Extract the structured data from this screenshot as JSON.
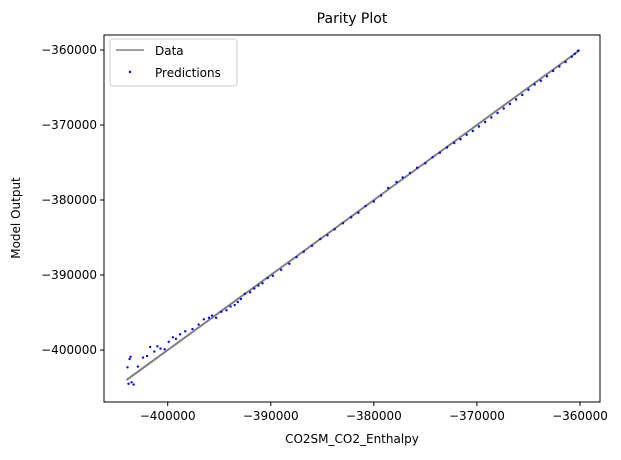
{
  "chart_data": {
    "type": "scatter",
    "title": "Parity Plot",
    "xlabel": "CO2SM_CO2_Enthalpy",
    "ylabel": "Model Output",
    "xlim": [
      -406180,
      -358060
    ],
    "ylim": [
      -406930,
      -358000
    ],
    "xticks": [
      -400000,
      -390000,
      -380000,
      -370000,
      -360000
    ],
    "yticks": [
      -400000,
      -390000,
      -380000,
      -370000,
      -360000
    ],
    "xtick_labels": [
      "−400000",
      "−390000",
      "−380000",
      "−370000",
      "−360000"
    ],
    "ytick_labels": [
      "−400000",
      "−390000",
      "−380000",
      "−370000",
      "−360000"
    ],
    "grid": false,
    "legend_placement": "top-left",
    "series": [
      {
        "name": "Data",
        "kind": "line",
        "color": "#808080",
        "points": [
          [
            -404000,
            -404000
          ],
          [
            -360000,
            -360000
          ]
        ]
      },
      {
        "name": "Predictions",
        "kind": "scatter",
        "color": "#0000ff",
        "points": [
          [
            -403900,
            -402300
          ],
          [
            -403700,
            -401200
          ],
          [
            -403600,
            -400900
          ],
          [
            -403800,
            -404500
          ],
          [
            -403500,
            -404300
          ],
          [
            -403300,
            -404600
          ],
          [
            -402900,
            -402200
          ],
          [
            -402400,
            -401000
          ],
          [
            -402000,
            -400800
          ],
          [
            -401700,
            -399600
          ],
          [
            -401300,
            -400200
          ],
          [
            -401000,
            -399500
          ],
          [
            -400700,
            -399800
          ],
          [
            -400300,
            -399900
          ],
          [
            -399900,
            -398900
          ],
          [
            -399500,
            -398300
          ],
          [
            -399200,
            -398500
          ],
          [
            -398800,
            -397900
          ],
          [
            -398300,
            -397500
          ],
          [
            -397600,
            -397200
          ],
          [
            -397000,
            -396600
          ],
          [
            -396500,
            -395900
          ],
          [
            -396000,
            -395700
          ],
          [
            -395700,
            -395400
          ],
          [
            -395300,
            -395700
          ],
          [
            -394800,
            -394900
          ],
          [
            -394300,
            -394700
          ],
          [
            -393900,
            -394200
          ],
          [
            -393500,
            -394000
          ],
          [
            -393200,
            -393600
          ],
          [
            -392900,
            -393200
          ],
          [
            -392500,
            -392500
          ],
          [
            -392000,
            -392300
          ],
          [
            -391600,
            -391800
          ],
          [
            -391200,
            -391400
          ],
          [
            -390800,
            -391100
          ],
          [
            -390300,
            -390400
          ],
          [
            -389800,
            -390100
          ],
          [
            -389000,
            -389300
          ],
          [
            -388200,
            -388500
          ],
          [
            -387500,
            -387600
          ],
          [
            -386800,
            -386900
          ],
          [
            -386000,
            -386100
          ],
          [
            -385200,
            -385200
          ],
          [
            -384500,
            -384700
          ],
          [
            -383800,
            -383900
          ],
          [
            -383000,
            -383100
          ],
          [
            -382200,
            -382300
          ],
          [
            -381500,
            -381700
          ],
          [
            -380800,
            -380800
          ],
          [
            -380000,
            -380200
          ],
          [
            -379300,
            -379400
          ],
          [
            -378600,
            -378400
          ],
          [
            -377800,
            -377600
          ],
          [
            -377200,
            -377000
          ],
          [
            -376500,
            -376400
          ],
          [
            -375800,
            -375700
          ],
          [
            -375000,
            -375100
          ],
          [
            -374300,
            -374300
          ],
          [
            -373600,
            -373700
          ],
          [
            -372900,
            -373000
          ],
          [
            -372200,
            -372400
          ],
          [
            -371600,
            -371900
          ],
          [
            -371000,
            -371300
          ],
          [
            -370400,
            -370800
          ],
          [
            -369800,
            -370200
          ],
          [
            -369200,
            -369600
          ],
          [
            -368600,
            -369000
          ],
          [
            -368000,
            -368400
          ],
          [
            -367400,
            -367800
          ],
          [
            -366800,
            -367200
          ],
          [
            -366200,
            -366600
          ],
          [
            -365600,
            -366000
          ],
          [
            -365000,
            -365300
          ],
          [
            -364400,
            -364600
          ],
          [
            -363800,
            -364100
          ],
          [
            -363200,
            -363500
          ],
          [
            -362600,
            -362800
          ],
          [
            -362000,
            -362200
          ],
          [
            -361400,
            -361600
          ],
          [
            -360800,
            -360900
          ],
          [
            -360500,
            -360500
          ],
          [
            -360200,
            -360100
          ]
        ]
      }
    ]
  }
}
